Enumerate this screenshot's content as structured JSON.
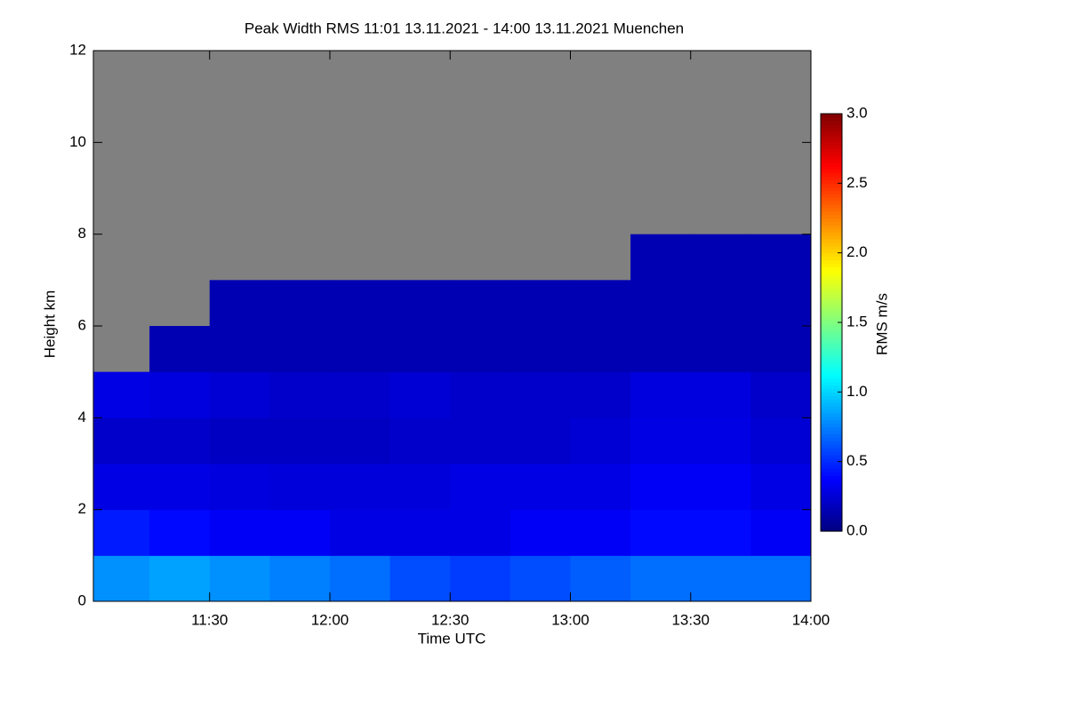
{
  "chart_data": {
    "type": "heatmap",
    "title": "Peak Width RMS   11:01 13.11.2021 - 14:00 13.11.2021 Muenchen",
    "x_label": "Time UTC",
    "y_label": "Height km",
    "colorbar_label": "RMS m/s",
    "colormap": "jet",
    "missing_color": "#808080",
    "x_edges": [
      11.0,
      11.25,
      11.5,
      11.75,
      12.0,
      12.25,
      12.5,
      12.75,
      13.0,
      13.25,
      13.5,
      13.75,
      14.0
    ],
    "y_edges": [
      0,
      1,
      2,
      3,
      4,
      5,
      6,
      7,
      8,
      9,
      10,
      11,
      12
    ],
    "z": [
      [
        0.8,
        0.85,
        0.8,
        0.75,
        0.7,
        0.6,
        0.55,
        0.6,
        0.65,
        0.7,
        0.7,
        0.7
      ],
      [
        0.45,
        0.4,
        0.35,
        0.35,
        0.3,
        0.3,
        0.3,
        0.35,
        0.35,
        0.4,
        0.4,
        0.35
      ],
      [
        0.3,
        0.3,
        0.28,
        0.27,
        0.27,
        0.27,
        0.3,
        0.3,
        0.3,
        0.35,
        0.35,
        0.3
      ],
      [
        0.22,
        0.22,
        0.2,
        0.2,
        0.2,
        0.22,
        0.22,
        0.22,
        0.25,
        0.3,
        0.3,
        0.25
      ],
      [
        0.3,
        0.28,
        0.25,
        0.22,
        0.22,
        0.25,
        0.22,
        0.22,
        0.22,
        0.28,
        0.28,
        0.22
      ],
      [
        null,
        0.15,
        0.15,
        0.15,
        0.15,
        0.15,
        0.15,
        0.15,
        0.15,
        0.15,
        0.15,
        0.15
      ],
      [
        null,
        null,
        0.15,
        0.15,
        0.15,
        0.15,
        0.15,
        0.15,
        0.15,
        0.15,
        0.15,
        0.15
      ],
      [
        null,
        null,
        null,
        null,
        null,
        null,
        null,
        null,
        null,
        0.15,
        0.15,
        0.15
      ],
      [
        null,
        null,
        null,
        null,
        null,
        null,
        null,
        null,
        null,
        null,
        null,
        null
      ],
      [
        null,
        null,
        null,
        null,
        null,
        null,
        null,
        null,
        null,
        null,
        null,
        null
      ],
      [
        null,
        null,
        null,
        null,
        null,
        null,
        null,
        null,
        null,
        null,
        null,
        null
      ],
      [
        null,
        null,
        null,
        null,
        null,
        null,
        null,
        null,
        null,
        null,
        null,
        null
      ]
    ],
    "xlim": [
      11.0167,
      14.0
    ],
    "xticks": [
      {
        "value": 11.5,
        "label": "11:30"
      },
      {
        "value": 12.0,
        "label": "12:00"
      },
      {
        "value": 12.5,
        "label": "12:30"
      },
      {
        "value": 13.0,
        "label": "13:00"
      },
      {
        "value": 13.5,
        "label": "13:30"
      },
      {
        "value": 14.0,
        "label": "14:00"
      }
    ],
    "ylim": [
      0,
      12
    ],
    "yticks": [
      0,
      2,
      4,
      6,
      8,
      10,
      12
    ],
    "zlim": [
      0,
      3
    ],
    "zticks": [
      {
        "value": 0,
        "label": "0.0"
      },
      0.5,
      {
        "value": 1,
        "label": "1.0"
      },
      1.5,
      {
        "value": 2,
        "label": "2.0"
      },
      2.5,
      {
        "value": 3,
        "label": "3.0"
      }
    ]
  }
}
